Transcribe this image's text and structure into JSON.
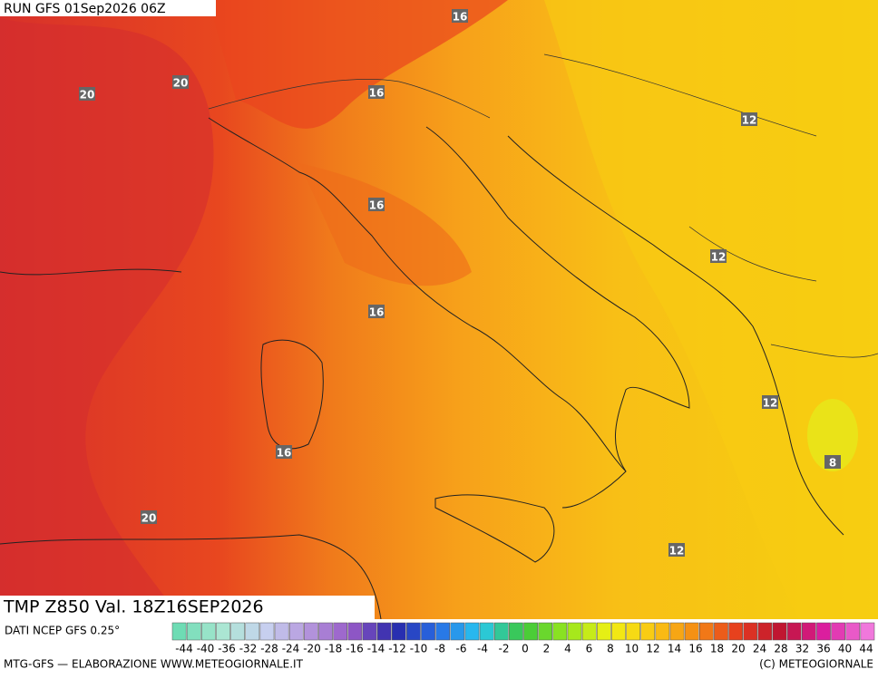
{
  "header": {
    "run": "RUN GFS 01Sep2026 06Z"
  },
  "contour_labels": [
    16,
    20,
    20,
    16,
    12,
    16,
    12,
    16,
    12,
    16,
    8,
    20,
    12
  ],
  "footer": {
    "field": "TMP Z850 Val. 18Z16SEP2026",
    "source": "DATI NCEP GFS 0.25°",
    "scale_labels": [
      "-44",
      "-40",
      "-36",
      "-32",
      "-28",
      "-24",
      "-20",
      "-18",
      "-16",
      "-14",
      "-12",
      "-10",
      "-8",
      "-6",
      "-4",
      "-2",
      "0",
      "2",
      "4",
      "6",
      "8",
      "10",
      "12",
      "14",
      "16",
      "18",
      "20",
      "24",
      "28",
      "32",
      "36",
      "40",
      "44"
    ],
    "credit_left": "MTG-GFS — ELABORAZIONE WWW.METEOGIORNALE.IT",
    "credit_right": "(C) METEOGIORNALE"
  }
}
